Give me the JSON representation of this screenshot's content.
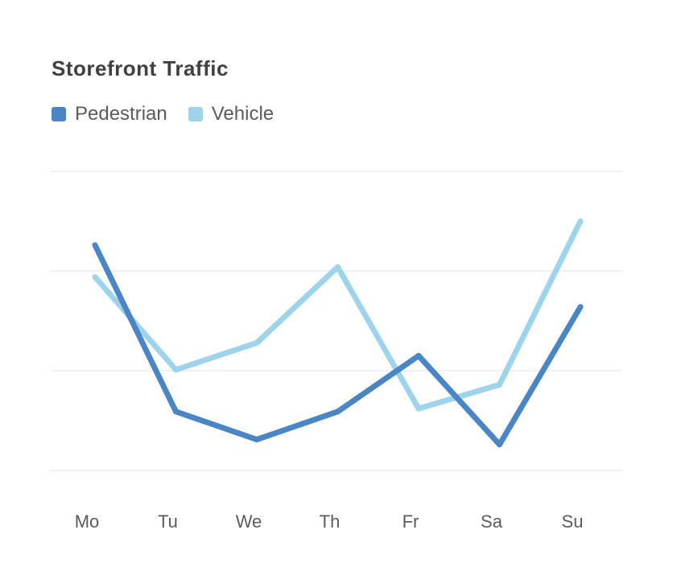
{
  "chart_data": {
    "type": "line",
    "title": "Storefront Traffic",
    "xlabel": "",
    "ylabel": "",
    "categories": [
      "Mo",
      "Tu",
      "We",
      "Th",
      "Fr",
      "Sa",
      "Su"
    ],
    "ylim": [
      0,
      300
    ],
    "grid": true,
    "legend_position": "top-left",
    "series": [
      {
        "name": "Pedestrian",
        "color": "#4a86c5",
        "values": [
          226,
          59,
          31,
          59,
          115,
          26,
          164
        ]
      },
      {
        "name": "Vehicle",
        "color": "#9dd4ec",
        "values": [
          194,
          101,
          128,
          204,
          62,
          86,
          250
        ]
      }
    ]
  }
}
